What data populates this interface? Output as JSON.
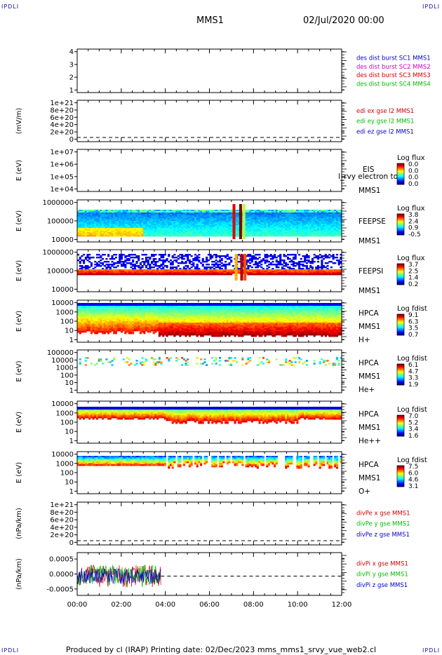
{
  "header": {
    "mission": "MMS1",
    "datetime": "02/Jul/2020 00:00",
    "corner_label": "IPDLI"
  },
  "footer": {
    "text": "Produced by cl (IRAP)    Printing date: 02/Dec/2023    mms_mms1_srvy_vue_web2.cl"
  },
  "chart_data": {
    "type": "multi-panel",
    "x_ticks": [
      "00:00",
      "02:00",
      "04:00",
      "06:00",
      "08:00",
      "10:00",
      "12:00"
    ],
    "x_range_hours": [
      0,
      12
    ],
    "panels": [
      {
        "id": "des-dist",
        "type": "line",
        "yticks": [
          "1",
          "2",
          "3",
          "4"
        ],
        "ylabel": "",
        "legend": [
          {
            "text": "des dist burst SC1 MMS1",
            "color": "#0000cc"
          },
          {
            "text": "des dist burst SC2 MMS2",
            "color": "#cc00cc"
          },
          {
            "text": "des dist burst SC3 MMS3",
            "color": "#cc0000"
          },
          {
            "text": "des dist burst SC4 MMS4",
            "color": "#00bb00"
          }
        ]
      },
      {
        "id": "edi",
        "type": "line",
        "yticks": [
          "0",
          "2e+20",
          "4e+20",
          "6e+20",
          "8e+20",
          "1e+21"
        ],
        "ylabel": "(mV/m)",
        "legend": [
          {
            "text": "edi ex gse l2 MMS1",
            "color": "#cc0000"
          },
          {
            "text": "edi ey gse l2 MMS1",
            "color": "#00bb00"
          },
          {
            "text": "edi ez gse l2 MMS1",
            "color": "#0000cc"
          }
        ]
      },
      {
        "id": "eis",
        "type": "heatmap",
        "yticks": [
          "1e+04",
          "1e+05",
          "1e+06",
          "1e+07"
        ],
        "ylabel": "E (eV)",
        "labels": [
          "EIS",
          "MMS1"
        ],
        "overlay_text": "l_rvy electron to",
        "colorbar": {
          "title": "Log flux",
          "ticks": [
            "0.0",
            "0.0",
            "0.0",
            "0.0"
          ]
        }
      },
      {
        "id": "feeps-e",
        "type": "heatmap",
        "yticks": [
          "10000",
          "100000",
          "1000000"
        ],
        "ylabel": "E (eV)",
        "labels": [
          "FEEPSE",
          "MMS1"
        ],
        "colorbar": {
          "title": "Log flux",
          "ticks": [
            "3.8",
            "2.4",
            "0.9",
            "-0.5"
          ]
        }
      },
      {
        "id": "feeps-i",
        "type": "heatmap",
        "yticks": [
          "10000",
          "100000",
          "1000000"
        ],
        "ylabel": "E (eV)",
        "labels": [
          "FEEPSI",
          "MMS1"
        ],
        "colorbar": {
          "title": "Log flux",
          "ticks": [
            "3.7",
            "2.5",
            "1.4",
            "0.2"
          ]
        }
      },
      {
        "id": "hpca-h",
        "type": "heatmap",
        "yticks": [
          "1",
          "10",
          "100",
          "1000",
          "10000"
        ],
        "ylabel": "E (eV)",
        "labels": [
          "HPCA",
          "MMS1",
          "H+"
        ],
        "colorbar": {
          "title": "Log fdist",
          "ticks": [
            "9.1",
            "6.3",
            "3.5",
            "0.7"
          ]
        }
      },
      {
        "id": "hpca-he",
        "type": "heatmap",
        "yticks": [
          "1",
          "10",
          "100",
          "1000",
          "10000",
          "100000"
        ],
        "ylabel": "E (eV)",
        "labels": [
          "HPCA",
          "MMS1",
          "He+"
        ],
        "colorbar": {
          "title": "Log fdist",
          "ticks": [
            "6.1",
            "4.7",
            "3.3",
            "1.9"
          ]
        }
      },
      {
        "id": "hpca-he2",
        "type": "heatmap",
        "yticks": [
          "1",
          "10",
          "100",
          "1000",
          "10000"
        ],
        "ylabel": "E (eV)",
        "labels": [
          "HPCA",
          "MMS1",
          "He++"
        ],
        "colorbar": {
          "title": "Log fdist",
          "ticks": [
            "7.0",
            "5.2",
            "3.4",
            "1.6"
          ]
        }
      },
      {
        "id": "hpca-o",
        "type": "heatmap",
        "yticks": [
          "1",
          "10",
          "100",
          "1000",
          "10000"
        ],
        "ylabel": "E (eV)",
        "labels": [
          "HPCA",
          "MMS1",
          "O+"
        ],
        "colorbar": {
          "title": "Log fdist",
          "ticks": [
            "7.5",
            "6.0",
            "4.6",
            "3.1"
          ]
        }
      },
      {
        "id": "divpe",
        "type": "line",
        "yticks": [
          "0",
          "2e+20",
          "4e+20",
          "6e+20",
          "8e+20",
          "1e+21"
        ],
        "ylabel": "(nPa/km)",
        "legend": [
          {
            "text": "divPe x gse MMS1",
            "color": "#cc0000"
          },
          {
            "text": "divPe y gse MMS1",
            "color": "#00bb00"
          },
          {
            "text": "divPe z gse MMS1",
            "color": "#0000cc"
          }
        ]
      },
      {
        "id": "divpi",
        "type": "line",
        "yticks": [
          "-0.0005",
          "0.0000",
          "0.0005"
        ],
        "ylabel": "(nPa/km)",
        "legend": [
          {
            "text": "divPi x gse MMS1",
            "color": "#cc0000"
          },
          {
            "text": "divPi y gse MMS1",
            "color": "#00bb00"
          },
          {
            "text": "divPi z gse MMS1",
            "color": "#0000cc"
          }
        ],
        "data_extent_hours": [
          0,
          3.8
        ]
      }
    ]
  }
}
